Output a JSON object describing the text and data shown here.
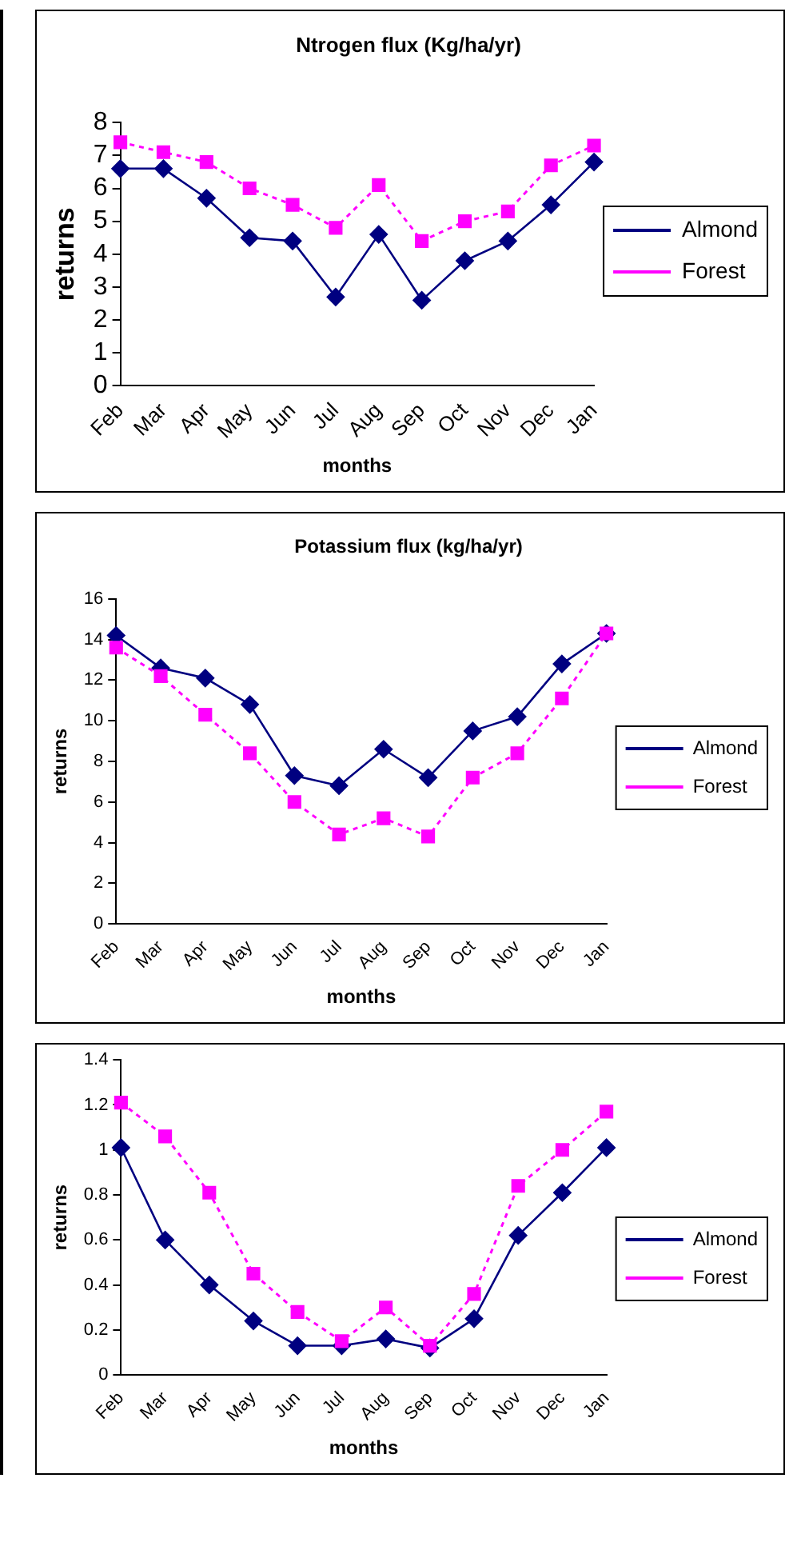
{
  "chart_data": [
    {
      "type": "line",
      "title": "Ntrogen flux (Kg/ha/yr)",
      "xlabel": "months",
      "ylabel": "returns",
      "categories": [
        "Feb",
        "Mar",
        "Apr",
        "May",
        "Jun",
        "Jul",
        "Aug",
        "Sep",
        "Oct",
        "Nov",
        "Dec",
        "Jan"
      ],
      "series": [
        {
          "name": "Almond",
          "color": "#000080",
          "marker": "diamond",
          "line_style": "solid",
          "values": [
            6.6,
            6.6,
            5.7,
            4.5,
            4.4,
            2.7,
            4.6,
            2.6,
            3.8,
            4.4,
            5.5,
            6.8
          ]
        },
        {
          "name": "Forest",
          "color": "#ff00ff",
          "marker": "square",
          "line_style": "dotted",
          "values": [
            7.4,
            7.1,
            6.8,
            6.0,
            5.5,
            4.8,
            6.1,
            4.4,
            5.0,
            5.3,
            6.7,
            7.3
          ]
        }
      ],
      "ylim": [
        0,
        8
      ],
      "yticks": [
        0,
        1,
        2,
        3,
        4,
        5,
        6,
        7,
        8
      ],
      "grid": false,
      "legend": "right"
    },
    {
      "type": "line",
      "title": "Potassium flux (kg/ha/yr)",
      "xlabel": "months",
      "ylabel": "returns",
      "categories": [
        "Feb",
        "Mar",
        "Apr",
        "May",
        "Jun",
        "Jul",
        "Aug",
        "Sep",
        "Oct",
        "Nov",
        "Dec",
        "Jan"
      ],
      "series": [
        {
          "name": "Almond",
          "color": "#000080",
          "marker": "diamond",
          "line_style": "solid",
          "values": [
            14.2,
            12.6,
            12.1,
            10.8,
            7.3,
            6.8,
            8.6,
            7.2,
            9.5,
            10.2,
            12.8,
            14.3
          ]
        },
        {
          "name": "Forest",
          "color": "#ff00ff",
          "marker": "square",
          "line_style": "dotted",
          "values": [
            13.6,
            12.2,
            10.3,
            8.4,
            6.0,
            4.4,
            5.2,
            4.3,
            7.2,
            8.4,
            11.1,
            14.3
          ]
        }
      ],
      "ylim": [
        0,
        16
      ],
      "yticks": [
        0,
        2,
        4,
        6,
        8,
        10,
        12,
        14,
        16
      ],
      "grid": false,
      "legend": "right"
    },
    {
      "type": "line",
      "xlabel": "months",
      "ylabel": "returns",
      "categories": [
        "Feb",
        "Mar",
        "Apr",
        "May",
        "Jun",
        "Jul",
        "Aug",
        "Sep",
        "Oct",
        "Nov",
        "Dec",
        "Jan"
      ],
      "series": [
        {
          "name": "Almond",
          "color": "#000080",
          "marker": "diamond",
          "line_style": "solid",
          "values": [
            1.01,
            0.6,
            0.4,
            0.24,
            0.13,
            0.13,
            0.16,
            0.12,
            0.25,
            0.62,
            0.81,
            1.01
          ]
        },
        {
          "name": "Forest",
          "color": "#ff00ff",
          "marker": "square",
          "line_style": "dotted",
          "values": [
            1.21,
            1.06,
            0.81,
            0.45,
            0.28,
            0.15,
            0.3,
            0.13,
            0.36,
            0.84,
            1.0,
            1.17
          ]
        }
      ],
      "ylim": [
        0,
        1.4
      ],
      "yticks": [
        0,
        0.2,
        0.4,
        0.6,
        0.8,
        1,
        1.2,
        1.4
      ],
      "grid": false,
      "legend": "right"
    }
  ]
}
